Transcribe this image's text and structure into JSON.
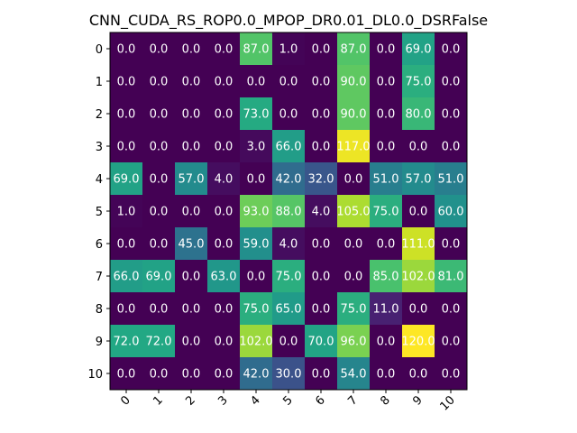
{
  "chart_data": {
    "type": "heatmap",
    "title": "CNN_CUDA_RS_ROP0.0_MPOP_DR0.01_DL0.0_DSRFalse",
    "x_ticks": [
      "0",
      "1",
      "2",
      "3",
      "4",
      "5",
      "6",
      "7",
      "8",
      "9",
      "10"
    ],
    "y_ticks": [
      "0",
      "1",
      "2",
      "3",
      "4",
      "5",
      "6",
      "7",
      "8",
      "9",
      "10"
    ],
    "colormap": "viridis",
    "vmin": 0,
    "vmax": 120,
    "grid": false,
    "values": [
      [
        0.0,
        0.0,
        0.0,
        0.0,
        87.0,
        1.0,
        0.0,
        87.0,
        0.0,
        69.0,
        0.0
      ],
      [
        0.0,
        0.0,
        0.0,
        0.0,
        0.0,
        0.0,
        0.0,
        90.0,
        0.0,
        75.0,
        0.0
      ],
      [
        0.0,
        0.0,
        0.0,
        0.0,
        73.0,
        0.0,
        0.0,
        90.0,
        0.0,
        80.0,
        0.0
      ],
      [
        0.0,
        0.0,
        0.0,
        0.0,
        3.0,
        66.0,
        0.0,
        117.0,
        0.0,
        0.0,
        0.0
      ],
      [
        69.0,
        0.0,
        57.0,
        4.0,
        0.0,
        42.0,
        32.0,
        0.0,
        51.0,
        57.0,
        51.0
      ],
      [
        1.0,
        0.0,
        0.0,
        0.0,
        93.0,
        88.0,
        4.0,
        105.0,
        75.0,
        0.0,
        60.0
      ],
      [
        0.0,
        0.0,
        45.0,
        0.0,
        59.0,
        4.0,
        0.0,
        0.0,
        0.0,
        111.0,
        0.0
      ],
      [
        66.0,
        69.0,
        0.0,
        63.0,
        0.0,
        75.0,
        0.0,
        0.0,
        85.0,
        102.0,
        81.0
      ],
      [
        0.0,
        0.0,
        0.0,
        0.0,
        75.0,
        65.0,
        0.0,
        75.0,
        11.0,
        0.0,
        0.0
      ],
      [
        72.0,
        72.0,
        0.0,
        0.0,
        102.0,
        0.0,
        70.0,
        96.0,
        0.0,
        120.0,
        0.0
      ],
      [
        0.0,
        0.0,
        0.0,
        0.0,
        42.0,
        30.0,
        0.0,
        54.0,
        0.0,
        0.0,
        0.0
      ]
    ]
  }
}
